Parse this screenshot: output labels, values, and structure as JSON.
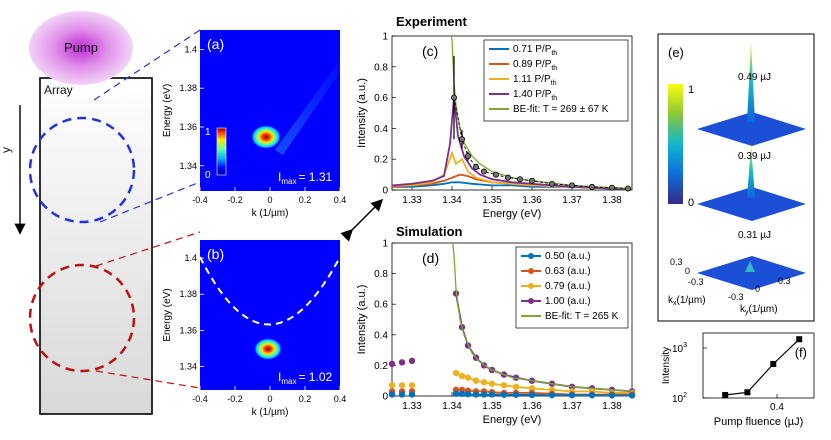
{
  "schematic": {
    "pump_label": "Pump",
    "array_label": "Array",
    "axis_label": "y"
  },
  "panel_a": {
    "tag": "(a)",
    "ylabel": "Energy (eV)",
    "xlabel": "k (1/µm)",
    "xticks": [
      "-0.4",
      "-0.2",
      "0",
      "0.2",
      "0.4"
    ],
    "yticks": [
      "1.4",
      "1.38",
      "1.36",
      "1.34"
    ],
    "colorbar_max": "1",
    "colorbar_min": "0",
    "imax_label": "I",
    "imax_sub": "max",
    "imax_value": "= 1.31"
  },
  "panel_b": {
    "tag": "(b)",
    "ylabel": "Energy (eV)",
    "xlabel": "k (1/µm)",
    "xticks": [
      "-0.4",
      "-0.2",
      "0",
      "0.2",
      "0.4"
    ],
    "yticks": [
      "1.4",
      "1.38",
      "1.36",
      "1.34"
    ],
    "imax_label": "I",
    "imax_sub": "max",
    "imax_value": "= 1.02"
  },
  "panel_c_title": "Experiment",
  "panel_d_title": "Simulation",
  "panel_e": {
    "tag": "(e)",
    "colorbar_max": "1",
    "colorbar_min": "0",
    "labels": [
      "0.49 µJ",
      "0.39 µJ",
      "0.31 µJ"
    ],
    "kx_label": "k",
    "kx_sub": "x",
    "kx_unit": "(1/µm)",
    "ky_label": "k",
    "ky_sub": "y",
    "ky_unit": "(1/µm)",
    "kx_ticks": [
      "0.3",
      "0",
      "-0.3"
    ],
    "ky_ticks": [
      "-0.3",
      "0",
      "0.3"
    ]
  },
  "colors": {
    "blue": "#0072BD",
    "red": "#D95319",
    "yellow": "#EDB120",
    "purple": "#7E2F8E",
    "green": "#77AC30",
    "dash_blue": "#2233dd",
    "dash_red": "#bb1111"
  },
  "chart_data": [
    {
      "id": "c",
      "type": "line",
      "tag": "(c)",
      "title": "Experiment",
      "xlabel": "Energy (eV)",
      "ylabel": "Intensity (a.u.)",
      "xlim": [
        1.325,
        1.385
      ],
      "ylim": [
        0,
        1
      ],
      "xticks": [
        1.33,
        1.34,
        1.35,
        1.36,
        1.37,
        1.38
      ],
      "yticks": [
        0,
        0.2,
        0.4,
        0.6,
        0.8,
        1
      ],
      "legend": [
        {
          "text": "0.71 P/P",
          "sub": "th"
        },
        {
          "text": "0.89 P/P",
          "sub": "th"
        },
        {
          "text": "1.11 P/P",
          "sub": "th"
        },
        {
          "text": "1.40 P/P",
          "sub": "th"
        },
        {
          "text": "BE-fit: T = 269 ± 67 K",
          "sub": ""
        }
      ],
      "series": [
        {
          "name": "0.71 P/Pth",
          "color": "#0072BD",
          "x": [
            1.325,
            1.33,
            1.335,
            1.338,
            1.34,
            1.342,
            1.345,
            1.35,
            1.355,
            1.36,
            1.37,
            1.38,
            1.385
          ],
          "y": [
            0.02,
            0.02,
            0.03,
            0.04,
            0.05,
            0.05,
            0.04,
            0.03,
            0.03,
            0.02,
            0.02,
            0.01,
            0.01
          ]
        },
        {
          "name": "0.89 P/Pth",
          "color": "#D95319",
          "x": [
            1.325,
            1.33,
            1.335,
            1.338,
            1.34,
            1.342,
            1.344,
            1.346,
            1.35,
            1.355,
            1.36,
            1.37,
            1.38,
            1.385
          ],
          "y": [
            0.02,
            0.03,
            0.04,
            0.06,
            0.08,
            0.1,
            0.09,
            0.07,
            0.05,
            0.04,
            0.03,
            0.02,
            0.01,
            0.01
          ]
        },
        {
          "name": "1.11 P/Pth",
          "color": "#EDB120",
          "x": [
            1.325,
            1.33,
            1.335,
            1.338,
            1.34,
            1.341,
            1.3425,
            1.344,
            1.346,
            1.35,
            1.355,
            1.36,
            1.37,
            1.38,
            1.385
          ],
          "y": [
            0.03,
            0.03,
            0.05,
            0.1,
            0.24,
            0.17,
            0.2,
            0.12,
            0.08,
            0.05,
            0.04,
            0.03,
            0.02,
            0.01,
            0.01
          ]
        },
        {
          "name": "1.40 P/Pth",
          "color": "#7E2F8E",
          "x": [
            1.325,
            1.33,
            1.335,
            1.338,
            1.3395,
            1.3405,
            1.3415,
            1.343,
            1.345,
            1.347,
            1.35,
            1.355,
            1.36,
            1.37,
            1.38,
            1.385
          ],
          "y": [
            0.03,
            0.04,
            0.06,
            0.09,
            0.3,
            0.6,
            0.35,
            0.22,
            0.14,
            0.1,
            0.07,
            0.05,
            0.04,
            0.02,
            0.01,
            0.01
          ]
        },
        {
          "name": "BE-fit",
          "color": "#77AC30",
          "x": [
            1.3398,
            1.34,
            1.3405,
            1.341,
            1.342,
            1.343,
            1.345,
            1.347,
            1.35,
            1.355,
            1.36,
            1.37,
            1.38,
            1.385
          ],
          "y": [
            1.0,
            0.98,
            0.7,
            0.55,
            0.4,
            0.31,
            0.22,
            0.17,
            0.12,
            0.08,
            0.06,
            0.03,
            0.015,
            0.01
          ]
        }
      ],
      "markers": {
        "x": [
          1.3405,
          1.3425,
          1.344,
          1.346,
          1.348,
          1.351,
          1.354,
          1.357,
          1.36,
          1.365,
          1.37,
          1.375,
          1.38,
          1.384
        ],
        "y": [
          0.6,
          0.33,
          0.22,
          0.15,
          0.12,
          0.1,
          0.08,
          0.07,
          0.06,
          0.04,
          0.03,
          0.02,
          0.015,
          0.01
        ],
        "err": [
          0.27,
          0.06,
          0.03,
          0.02,
          0.01,
          0.01,
          0.01,
          0,
          0,
          0,
          0,
          0,
          0,
          0
        ]
      }
    },
    {
      "id": "d",
      "type": "line",
      "tag": "(d)",
      "title": "Simulation",
      "xlabel": "Energy (eV)",
      "ylabel": "Intensity (a.u.)",
      "xlim": [
        1.325,
        1.385
      ],
      "ylim": [
        0,
        1
      ],
      "xticks": [
        1.33,
        1.34,
        1.35,
        1.36,
        1.37,
        1.38
      ],
      "yticks": [
        0,
        0.2,
        0.4,
        0.6,
        0.8,
        1
      ],
      "legend": [
        {
          "text": "0.50 (a.u.)",
          "sub": ""
        },
        {
          "text": "0.63 (a.u.)",
          "sub": ""
        },
        {
          "text": "0.79 (a.u.)",
          "sub": ""
        },
        {
          "text": "1.00 (a.u.)",
          "sub": ""
        },
        {
          "text": "BE-fit: T = 265 K",
          "sub": ""
        }
      ],
      "left_dots": {
        "x": [
          1.325,
          1.3275,
          1.33
        ],
        "series": [
          {
            "color": "#7E2F8E",
            "y": [
              0.21,
              0.22,
              0.23
            ]
          },
          {
            "color": "#EDB120",
            "y": [
              0.07,
              0.07,
              0.07
            ]
          },
          {
            "color": "#D95319",
            "y": [
              0.03,
              0.03,
              0.03
            ]
          },
          {
            "color": "#0072BD",
            "y": [
              0.01,
              0.01,
              0.01
            ]
          }
        ]
      },
      "series": [
        {
          "name": "1.00 (a.u.)",
          "color": "#7E2F8E",
          "x": [
            1.341,
            1.3425,
            1.344,
            1.346,
            1.348,
            1.35,
            1.353,
            1.356,
            1.36,
            1.365,
            1.37,
            1.375,
            1.38,
            1.385
          ],
          "y": [
            0.67,
            0.45,
            0.33,
            0.25,
            0.2,
            0.17,
            0.14,
            0.12,
            0.1,
            0.08,
            0.06,
            0.05,
            0.04,
            0.03
          ]
        },
        {
          "name": "0.79 (a.u.)",
          "color": "#EDB120",
          "x": [
            1.341,
            1.3425,
            1.344,
            1.346,
            1.348,
            1.35,
            1.353,
            1.356,
            1.36,
            1.365,
            1.37,
            1.375,
            1.38,
            1.385
          ],
          "y": [
            0.15,
            0.13,
            0.12,
            0.1,
            0.09,
            0.08,
            0.07,
            0.06,
            0.05,
            0.04,
            0.03,
            0.03,
            0.02,
            0.02
          ]
        },
        {
          "name": "0.63 (a.u.)",
          "color": "#D95319",
          "x": [
            1.341,
            1.3425,
            1.344,
            1.346,
            1.348,
            1.35,
            1.353,
            1.356,
            1.36,
            1.365,
            1.37,
            1.375,
            1.38,
            1.385
          ],
          "y": [
            0.04,
            0.04,
            0.035,
            0.03,
            0.03,
            0.025,
            0.02,
            0.02,
            0.02,
            0.015,
            0.01,
            0.01,
            0.01,
            0.01
          ]
        },
        {
          "name": "0.50 (a.u.)",
          "color": "#0072BD",
          "x": [
            1.341,
            1.3425,
            1.344,
            1.346,
            1.348,
            1.35,
            1.353,
            1.356,
            1.36,
            1.365,
            1.37,
            1.375,
            1.38,
            1.385
          ],
          "y": [
            0.015,
            0.015,
            0.012,
            0.01,
            0.01,
            0.01,
            0.008,
            0.008,
            0.007,
            0.006,
            0.005,
            0.005,
            0.004,
            0.004
          ]
        },
        {
          "name": "BE-fit",
          "color": "#77AC30",
          "x": [
            1.3402,
            1.3405,
            1.341,
            1.342,
            1.343,
            1.345,
            1.347,
            1.35,
            1.355,
            1.36,
            1.37,
            1.38,
            1.385
          ],
          "y": [
            1.0,
            0.92,
            0.7,
            0.5,
            0.4,
            0.28,
            0.22,
            0.17,
            0.12,
            0.1,
            0.06,
            0.04,
            0.03
          ]
        }
      ]
    },
    {
      "id": "f",
      "type": "line",
      "tag": "(f)",
      "xlabel": "Pump fluence (µJ)",
      "ylabel": "Intensity",
      "yscale": "log",
      "xlim": [
        0.2,
        0.5
      ],
      "ylim": [
        100,
        2000
      ],
      "xticks": [
        "0.4"
      ],
      "yticks": [
        "10",
        "10"
      ],
      "ytick_exps": [
        "2",
        "3"
      ],
      "series": [
        {
          "name": "Intensity",
          "color": "#000000",
          "x": [
            0.26,
            0.32,
            0.39,
            0.46
          ],
          "y": [
            115,
            130,
            480,
            1500
          ]
        }
      ]
    }
  ]
}
